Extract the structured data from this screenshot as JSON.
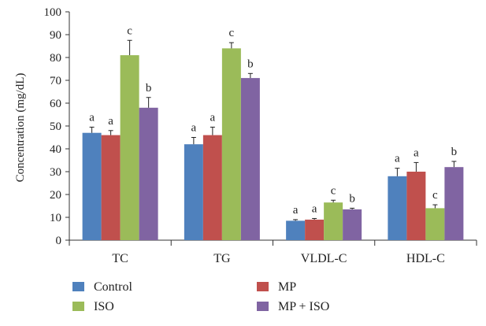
{
  "chart_data": {
    "type": "bar",
    "categories": [
      "TC",
      "TG",
      "VLDL-C",
      "HDL-C"
    ],
    "ylabel": "Concentration (mg/dL)",
    "xlabel": "",
    "ylim": [
      0,
      100
    ],
    "yticks": [
      0,
      10,
      20,
      30,
      40,
      50,
      60,
      70,
      80,
      90,
      100
    ],
    "grid": false,
    "legend_position": "bottom",
    "series": [
      {
        "name": "Control",
        "color": "#4F81BD",
        "values": [
          47,
          42,
          8.5,
          28
        ],
        "errors": [
          2.5,
          3,
          0.5,
          3.5
        ],
        "labels": [
          "a",
          "a",
          "a",
          "a"
        ]
      },
      {
        "name": "MP",
        "color": "#C0504D",
        "values": [
          46,
          46,
          9,
          30
        ],
        "errors": [
          2,
          3.5,
          0.5,
          4
        ],
        "labels": [
          "a",
          "a",
          "a",
          "a"
        ]
      },
      {
        "name": "ISO",
        "color": "#9BBB59",
        "values": [
          81,
          84,
          16.5,
          14
        ],
        "errors": [
          6.5,
          2.5,
          1,
          1.5
        ],
        "labels": [
          "c",
          "c",
          "c",
          "c"
        ]
      },
      {
        "name": "MP + ISO",
        "color": "#8064A2",
        "values": [
          58,
          71,
          13.5,
          32
        ],
        "errors": [
          4.5,
          2,
          0.5,
          2.5
        ],
        "labels": [
          "b",
          "b",
          "b",
          "b"
        ]
      }
    ]
  }
}
